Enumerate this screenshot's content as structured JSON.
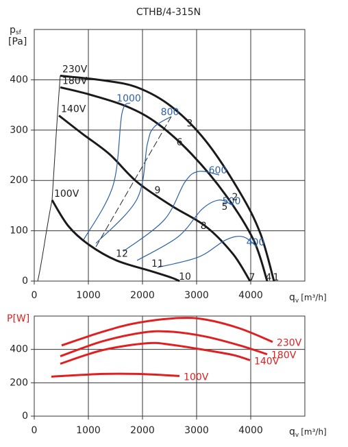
{
  "chart_data": [
    {
      "type": "line",
      "title": "CTHB/4-315N",
      "y_label": "p",
      "y_label_sub": "sf",
      "y_unit": "[Pa]",
      "x_label": "q",
      "x_label_sub": "v",
      "x_unit": "[m³/h]",
      "xlim": [
        0,
        5000
      ],
      "ylim": [
        0,
        500
      ],
      "xticks": [
        0,
        1000,
        2000,
        3000,
        4000
      ],
      "yticks": [
        0,
        100,
        200,
        300,
        400
      ],
      "grid": true,
      "series": [
        {
          "name": "230V",
          "color": "#1a1a1a",
          "width": 3,
          "x": [
            481,
            1266,
            1899,
            2532,
            3165,
            3797,
            4177,
            4430
          ],
          "values": [
            408,
            399,
            385,
            347,
            279,
            177,
            95,
            0
          ]
        },
        {
          "name": "180V",
          "color": "#1a1a1a",
          "width": 3,
          "x": [
            481,
            1013,
            1709,
            2278,
            2911,
            3544,
            4051,
            4304
          ],
          "values": [
            385,
            371,
            347,
            313,
            252,
            170,
            82,
            0
          ]
        },
        {
          "name": "140V",
          "color": "#1a1a1a",
          "width": 3,
          "x": [
            456,
            886,
            1392,
            1899,
            2532,
            3165,
            3671,
            3987
          ],
          "values": [
            329,
            293,
            252,
            197,
            150,
            109,
            54,
            0
          ]
        },
        {
          "name": "100V",
          "color": "#1a1a1a",
          "width": 3,
          "x": [
            329,
            633,
            1013,
            1519,
            2152,
            2532,
            2684
          ],
          "values": [
            161,
            109,
            72,
            41,
            20,
            7,
            0
          ]
        },
        {
          "name": "1000",
          "color": "#2b5fa8",
          "width": 1.2,
          "x": [
            912,
            1456,
            1620,
            1772
          ],
          "values": [
            82,
            190,
            333,
            354
          ]
        },
        {
          "name": "800",
          "color": "#2b5fa8",
          "width": 1.2,
          "x": [
            1139,
            1899,
            2089,
            2215,
            2532
          ],
          "values": [
            75,
            163,
            272,
            306,
            327
          ]
        },
        {
          "name": "600",
          "color": "#2b5fa8",
          "width": 1.2,
          "x": [
            1646,
            2405,
            2785,
            3038,
            3418
          ],
          "values": [
            59,
            122,
            197,
            218,
            211
          ]
        },
        {
          "name": "500",
          "color": "#2b5fa8",
          "width": 1.2,
          "x": [
            1899,
            2658,
            3101,
            3418,
            3671
          ],
          "values": [
            41,
            88,
            143,
            161,
            150
          ]
        },
        {
          "name": "400",
          "color": "#2b5fa8",
          "width": 1.2,
          "x": [
            2278,
            3038,
            3544,
            3861,
            4114
          ],
          "values": [
            27,
            48,
            82,
            88,
            68
          ]
        }
      ],
      "annotations": [
        {
          "text": "1",
          "x": 4468,
          "y": 7
        },
        {
          "text": "2",
          "x": 3709,
          "y": 166
        },
        {
          "text": "3",
          "x": 2873,
          "y": 313
        },
        {
          "text": "4",
          "x": 4329,
          "y": 7
        },
        {
          "text": "5",
          "x": 3519,
          "y": 147
        },
        {
          "text": "6",
          "x": 2684,
          "y": 275
        },
        {
          "text": "7",
          "x": 4025,
          "y": 7
        },
        {
          "text": "8",
          "x": 3127,
          "y": 109
        },
        {
          "text": "9",
          "x": 2278,
          "y": 180
        },
        {
          "text": "10",
          "x": 2785,
          "y": 8
        },
        {
          "text": "11",
          "x": 2278,
          "y": 34
        },
        {
          "text": "12",
          "x": 1620,
          "y": 54
        }
      ]
    },
    {
      "type": "line",
      "y_label": "P[W]",
      "x_label": "q",
      "x_label_sub": "v",
      "x_unit": "[m³/h]",
      "xlim": [
        0,
        5000
      ],
      "ylim": [
        0,
        600
      ],
      "xticks": [
        0,
        1000,
        2000,
        3000,
        4000
      ],
      "yticks": [
        0,
        200,
        400
      ],
      "grid": true,
      "series": [
        {
          "name": "230V",
          "color": "#e02020",
          "width": 3,
          "x": [
            506,
            1266,
            1899,
            2658,
            3165,
            3797,
            4405
          ],
          "values": [
            424,
            506,
            559,
            588,
            579,
            526,
            445
          ]
        },
        {
          "name": "180V",
          "color": "#e02020",
          "width": 3,
          "x": [
            481,
            1266,
            2025,
            2532,
            3165,
            3797,
            4304
          ],
          "values": [
            359,
            449,
            502,
            506,
            477,
            424,
            371
          ]
        },
        {
          "name": "140V",
          "color": "#e02020",
          "width": 3,
          "x": [
            481,
            1266,
            2089,
            2532,
            3165,
            3671,
            3987
          ],
          "values": [
            314,
            396,
            437,
            428,
            396,
            367,
            335
          ]
        },
        {
          "name": "100V",
          "color": "#e02020",
          "width": 3,
          "x": [
            316,
            1266,
            1899,
            2684
          ],
          "values": [
            237,
            253,
            253,
            241
          ]
        }
      ]
    }
  ]
}
